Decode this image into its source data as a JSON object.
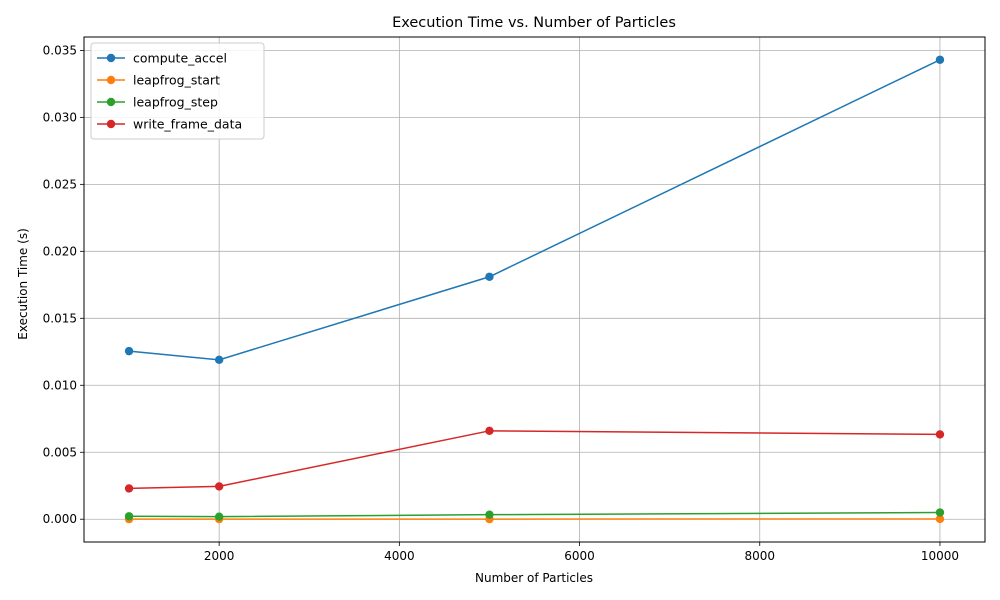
{
  "chart_data": {
    "type": "line",
    "title": "Execution Time vs. Number of Particles",
    "xlabel": "Number of Particles",
    "ylabel": "Execution Time (s)",
    "x": [
      1000,
      2000,
      5000,
      10000
    ],
    "xlim": [
      500,
      10500
    ],
    "ylim": [
      -0.0017,
      0.036
    ],
    "xticks": [
      2000,
      4000,
      6000,
      8000,
      10000
    ],
    "xtick_labels": [
      "2000",
      "4000",
      "6000",
      "8000",
      "10000"
    ],
    "yticks": [
      0.0,
      0.005,
      0.01,
      0.015,
      0.02,
      0.025,
      0.03,
      0.035
    ],
    "ytick_labels": [
      "0.000",
      "0.005",
      "0.010",
      "0.015",
      "0.020",
      "0.025",
      "0.030",
      "0.035"
    ],
    "grid": true,
    "legend_position": "top-left",
    "series": [
      {
        "name": "compute_accel",
        "color": "#1f77b4",
        "values": [
          0.01255,
          0.0119,
          0.0181,
          0.0343
        ]
      },
      {
        "name": "leapfrog_start",
        "color": "#ff7f0e",
        "values": [
          1e-05,
          1e-05,
          1e-05,
          2e-05
        ]
      },
      {
        "name": "leapfrog_step",
        "color": "#2ca02c",
        "values": [
          0.00022,
          0.00019,
          0.00034,
          0.0005
        ]
      },
      {
        "name": "write_frame_data",
        "color": "#d62728",
        "values": [
          0.0023,
          0.00245,
          0.0066,
          0.00633
        ]
      }
    ]
  }
}
